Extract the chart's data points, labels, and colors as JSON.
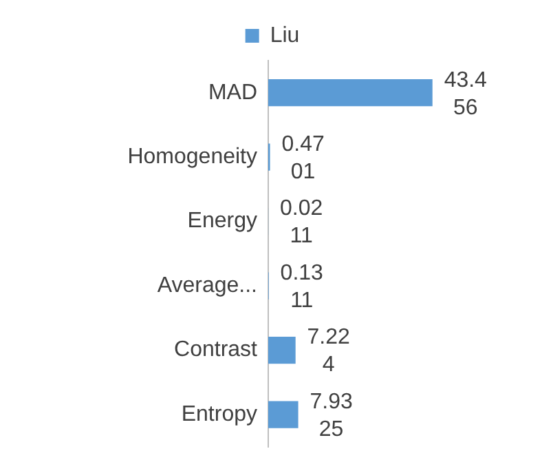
{
  "chart_data": {
    "type": "bar",
    "orientation": "horizontal",
    "categories": [
      "MAD",
      "Homogeneity",
      "Energy",
      "Average...",
      "Contrast",
      "Entropy"
    ],
    "series": [
      {
        "name": "Liu",
        "color": "#5b9bd5",
        "values": [
          43.456,
          0.4701,
          0.0211,
          0.1311,
          7.224,
          7.9325
        ]
      }
    ],
    "data_labels": true,
    "legend": "top",
    "grid": false
  }
}
